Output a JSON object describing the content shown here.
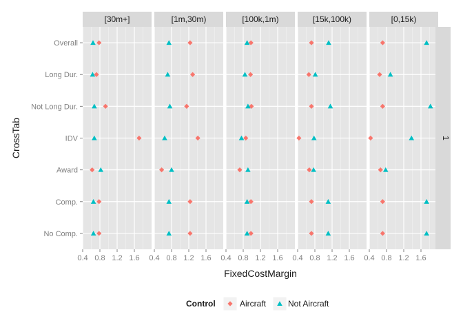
{
  "chart_data": {
    "type": "scatter",
    "xlabel": "FixedCostMargin",
    "ylabel": "CrossTab",
    "xlim": [
      0.4,
      2.0
    ],
    "x_ticks": [
      0.4,
      0.8,
      1.2,
      1.6
    ],
    "grid": true,
    "legend_position": "bottom",
    "legend_title": "Control",
    "row_strip_label": "1",
    "categories": [
      "Overall",
      "Long Dur.",
      "Not Long Dur.",
      "IDV",
      "Award",
      "Comp.",
      "No Comp."
    ],
    "series_styles": [
      {
        "name": "Aircraft",
        "color": "#F8766D",
        "shape": "diamond"
      },
      {
        "name": "Not Aircraft",
        "color": "#00BFC4",
        "shape": "triangle"
      }
    ],
    "panels": [
      {
        "label": "[30m+]",
        "series": [
          {
            "name": "Aircraft",
            "values": [
              0.78,
              0.72,
              0.93,
              1.71,
              0.62,
              0.78,
              0.78
            ]
          },
          {
            "name": "Not Aircraft",
            "values": [
              0.64,
              0.63,
              0.67,
              0.67,
              0.82,
              0.65,
              0.65
            ]
          }
        ]
      },
      {
        "label": "[1m,30m)",
        "series": [
          {
            "name": "Aircraft",
            "values": [
              1.23,
              1.29,
              1.15,
              1.41,
              0.57,
              1.23,
              1.23
            ]
          },
          {
            "name": "Not Aircraft",
            "values": [
              0.74,
              0.71,
              0.76,
              0.64,
              0.8,
              0.74,
              0.74
            ]
          }
        ]
      },
      {
        "label": "[100k,1m)",
        "series": [
          {
            "name": "Aircraft",
            "values": [
              0.98,
              0.97,
              0.99,
              0.86,
              0.72,
              0.98,
              0.98
            ]
          },
          {
            "name": "Not Aircraft",
            "values": [
              0.89,
              0.84,
              0.91,
              0.76,
              0.91,
              0.89,
              0.89
            ]
          }
        ]
      },
      {
        "label": "[15k,100k)",
        "series": [
          {
            "name": "Aircraft",
            "values": [
              0.72,
              0.66,
              0.72,
              0.43,
              0.67,
              0.72,
              0.72
            ]
          },
          {
            "name": "Not Aircraft",
            "values": [
              1.12,
              0.81,
              1.16,
              0.78,
              0.77,
              1.11,
              1.11
            ]
          }
        ]
      },
      {
        "label": "[0,15k)",
        "series": [
          {
            "name": "Aircraft",
            "values": [
              0.71,
              0.64,
              0.71,
              0.43,
              0.66,
              0.71,
              0.71
            ]
          },
          {
            "name": "Not Aircraft",
            "values": [
              1.73,
              0.89,
              1.82,
              1.38,
              0.78,
              1.73,
              1.73
            ]
          }
        ]
      }
    ]
  }
}
